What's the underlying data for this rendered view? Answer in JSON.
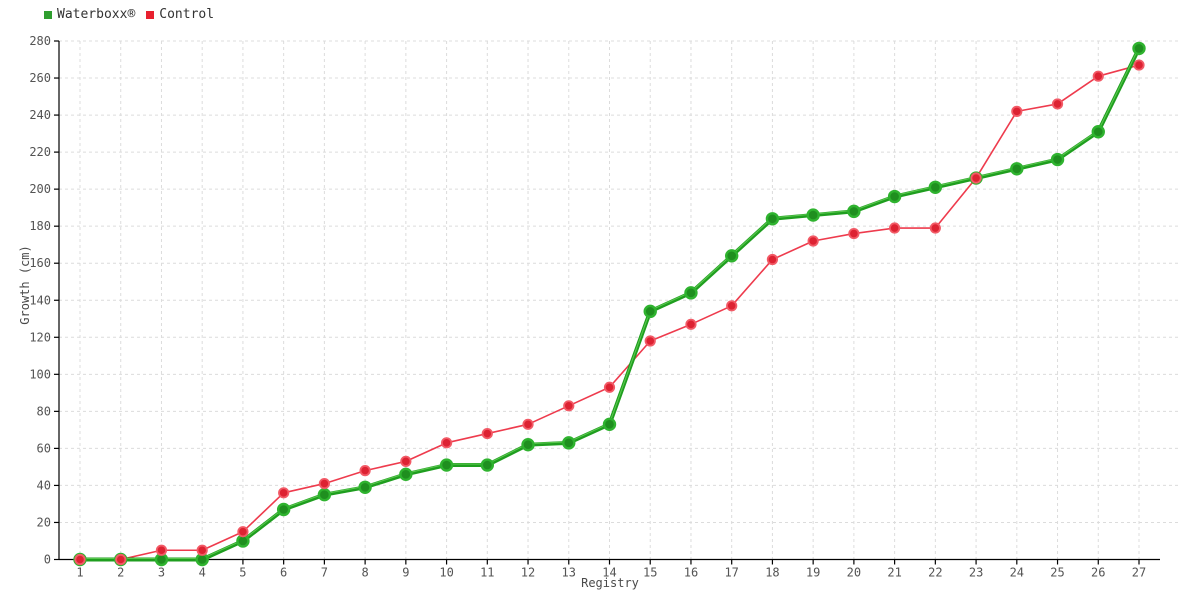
{
  "legend": {
    "items": [
      {
        "label": "Waterboxx®",
        "swatch_color": "#2f9e2f"
      },
      {
        "label": "Control",
        "swatch_color": "#e8212f"
      }
    ]
  },
  "chart_data": {
    "type": "line",
    "title": "",
    "xlabel": "Registry",
    "ylabel": "Growth (cm)",
    "x": [
      1,
      2,
      3,
      4,
      5,
      6,
      7,
      8,
      9,
      10,
      11,
      12,
      13,
      14,
      15,
      16,
      17,
      18,
      19,
      20,
      21,
      22,
      23,
      24,
      25,
      26,
      27
    ],
    "series": [
      {
        "name": "Waterboxx®",
        "line_color": "#1f9e1f",
        "line_highlight_color": "#5ecb52",
        "marker_fill": "#1f8f1f",
        "marker_stroke": "#2fb32f",
        "line_width": 4,
        "marker_radius": 5.5,
        "values": [
          0,
          0,
          0,
          0,
          10,
          27,
          35,
          39,
          46,
          51,
          51,
          62,
          63,
          73,
          134,
          144,
          164,
          184,
          186,
          188,
          196,
          201,
          206,
          211,
          216,
          231,
          276
        ]
      },
      {
        "name": "Control",
        "line_color": "#ee3b4d",
        "marker_fill": "#dd2232",
        "marker_stroke": "#f25a66",
        "line_width": 1.6,
        "marker_radius": 4.7,
        "values": [
          0,
          0,
          5,
          5,
          15,
          36,
          41,
          48,
          53,
          63,
          68,
          73,
          83,
          93,
          118,
          127,
          137,
          162,
          172,
          176,
          179,
          179,
          206,
          242,
          246,
          261,
          267
        ]
      }
    ],
    "ylim": [
      0,
      280
    ],
    "ytick_step": 20,
    "grid": true,
    "grid_color": "#dcdcdc",
    "axis_color": "#000000",
    "legend_position": "top-left"
  }
}
